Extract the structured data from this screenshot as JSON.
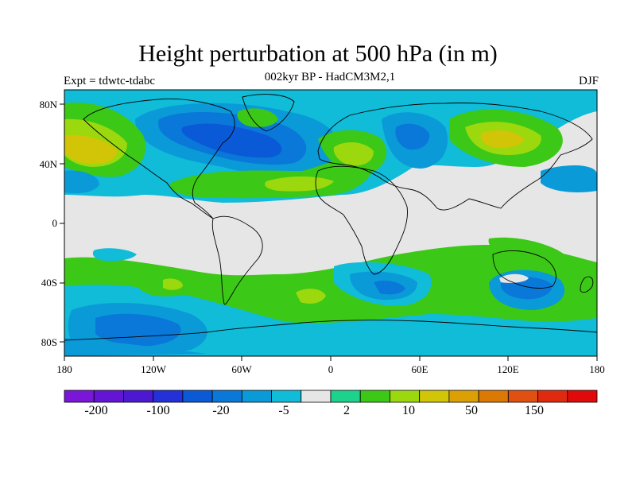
{
  "title": "Height perturbation at 500 hPa (in m)",
  "subtitle": "002kyr BP - HadCM3M2,1",
  "left_label": "Expt = tdwtc-tdabc",
  "right_label": "DJF",
  "map": {
    "lat_ticks": [
      "80N",
      "40N",
      "0",
      "40S",
      "80S"
    ],
    "lon_ticks": [
      "180",
      "120W",
      "60W",
      "0",
      "60E",
      "120E",
      "180"
    ],
    "colors": {
      "neutral": "#e6e6e6",
      "ocean_land_outline": "#000000"
    }
  },
  "colorbar": {
    "colors": [
      "#7a16d8",
      "#6414d4",
      "#4c18d2",
      "#2430d8",
      "#0a5ad8",
      "#0a78d8",
      "#0a9ad8",
      "#10bcd8",
      "#e6e6e6",
      "#1cd28c",
      "#3cc816",
      "#9cd80e",
      "#d2c406",
      "#dca004",
      "#dc7804",
      "#e05010",
      "#e02a10",
      "#e00a0a"
    ],
    "labels": [
      "-200",
      "-100",
      "-20",
      "-5",
      "2",
      "10",
      "50",
      "150"
    ]
  }
}
